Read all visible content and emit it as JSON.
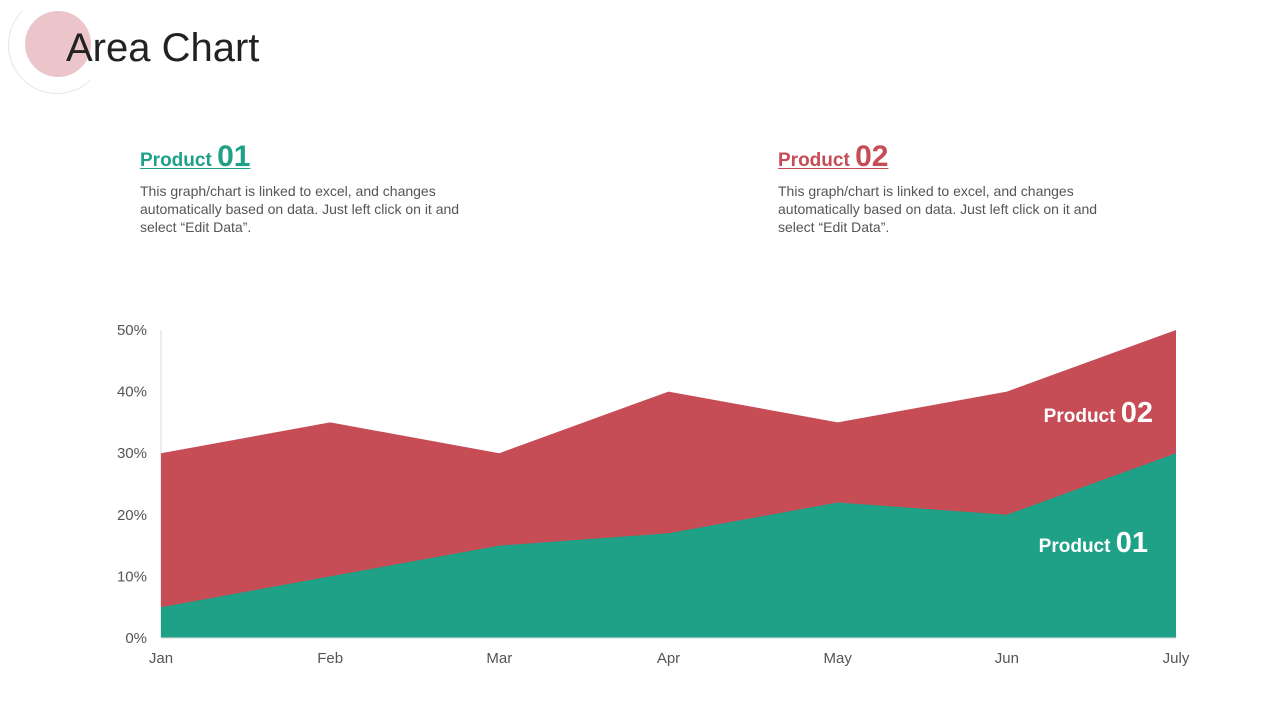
{
  "title": "Area Chart",
  "colors": {
    "product1": "#1ea187",
    "product2": "#c64c55"
  },
  "product1": {
    "label": "Product",
    "num": "01",
    "text": "This graph/chart is linked to excel, and changes automatically based on data. Just left click on it and select “Edit Data”."
  },
  "product2": {
    "label": "Product",
    "num": "02",
    "text": "This graph/chart is linked to excel, and changes automatically based on data. Just left click on it and select “Edit Data”."
  },
  "chart_data": {
    "type": "area",
    "stacked": false,
    "title": "",
    "xlabel": "",
    "ylabel": "",
    "categories": [
      "Jan",
      "Feb",
      "Mar",
      "Apr",
      "May",
      "Jun",
      "July"
    ],
    "ylim": [
      0,
      50
    ],
    "yticks": [
      0,
      10,
      20,
      30,
      40,
      50
    ],
    "ytick_labels": [
      "0%",
      "10%",
      "20%",
      "30%",
      "40%",
      "50%"
    ],
    "series": [
      {
        "name": "Product 02",
        "label": "Product",
        "num": "02",
        "values": [
          30,
          35,
          30,
          40,
          35,
          40,
          50
        ]
      },
      {
        "name": "Product 01",
        "label": "Product",
        "num": "01",
        "values": [
          5,
          10,
          15,
          17,
          22,
          20,
          30
        ]
      }
    ]
  }
}
